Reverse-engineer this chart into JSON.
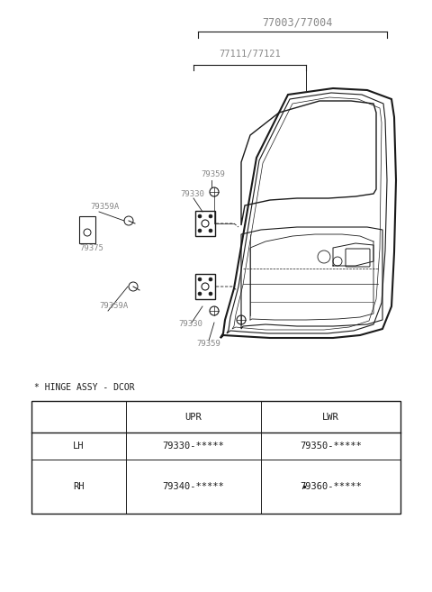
{
  "title": "77003/77004",
  "subtitle": "77111/77121",
  "background_color": "#ffffff",
  "line_color": "#1a1a1a",
  "gray_color": "#888888",
  "hinge_label": "* HINGE ASSY - DCOR",
  "table_headers": [
    "",
    "UPR",
    "LWR"
  ],
  "table_rows": [
    [
      "LH",
      "79330-*****",
      "79350-*****"
    ],
    [
      "RH",
      "79340-*****",
      "79360-*****"
    ]
  ],
  "font_size_title": 8.5,
  "font_size_labels": 6.5,
  "font_size_table": 7.5,
  "figsize": [
    4.8,
    6.57
  ],
  "dpi": 100
}
